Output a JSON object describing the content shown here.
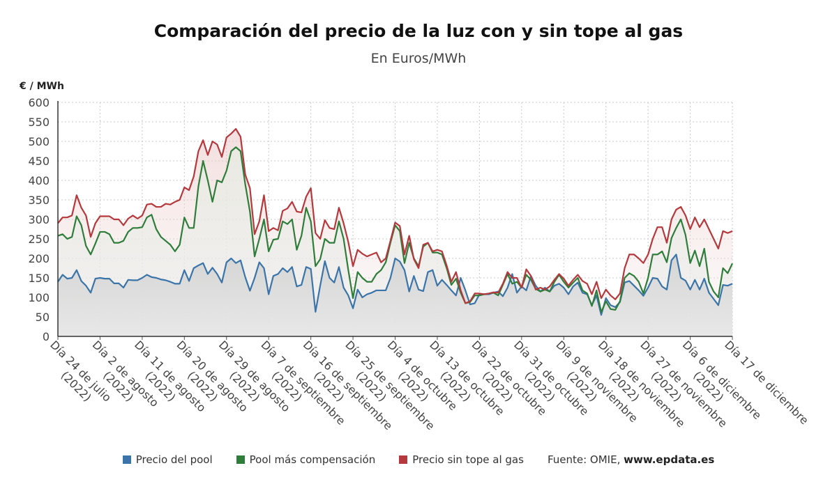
{
  "chart_data": {
    "type": "line",
    "title": "Comparación del precio de la luz con y sin tope al gas",
    "subtitle": "En Euros/MWh",
    "ylabel": "€ / MWh",
    "xlabel": "",
    "ylim": [
      0,
      600
    ],
    "yticks": [
      0,
      50,
      100,
      150,
      200,
      250,
      300,
      350,
      400,
      450,
      500,
      550,
      600
    ],
    "grid": true,
    "legend_position": "bottom",
    "x_tick_labels": [
      "Día 24 de julio (2022)",
      "Día 2 de agosto (2022)",
      "Día 11 de agosto (2022)",
      "Día 20 de agosto (2022)",
      "Día 29 de agosto (2022)",
      "Día 7 de septiembre (2022)",
      "Día 16 de septiembre (2022)",
      "Día 25 de septiembre (2022)",
      "Día 4 de octubre (2022)",
      "Día 13 de octubre (2022)",
      "Día 22 de octubre (2022)",
      "Día 31 de octubre (2022)",
      "Día 9 de noviembre (2022)",
      "Día 18 de noviembre (2022)",
      "Día 27 de noviembre (2022)",
      "Día 6 de diciembre (2022)",
      "Día 17 de diciembre"
    ],
    "x_tick_index": [
      0,
      9,
      18,
      27,
      36,
      45,
      54,
      63,
      72,
      81,
      90,
      99,
      108,
      117,
      126,
      135,
      144
    ],
    "series": [
      {
        "name": "Precio del pool",
        "color": "#3a74a8",
        "values": [
          140,
          158,
          148,
          150,
          170,
          142,
          130,
          112,
          148,
          150,
          148,
          148,
          136,
          136,
          125,
          145,
          144,
          144,
          150,
          158,
          152,
          150,
          146,
          144,
          140,
          135,
          135,
          170,
          142,
          175,
          182,
          188,
          160,
          176,
          160,
          138,
          190,
          200,
          188,
          195,
          152,
          117,
          150,
          190,
          175,
          108,
          155,
          160,
          175,
          165,
          178,
          128,
          132,
          178,
          173,
          63,
          130,
          193,
          150,
          138,
          178,
          125,
          105,
          72,
          120,
          100,
          108,
          112,
          118,
          118,
          118,
          150,
          200,
          192,
          170,
          115,
          155,
          120,
          116,
          165,
          170,
          130,
          145,
          132,
          118,
          105,
          150,
          118,
          82,
          85,
          108,
          108,
          108,
          112,
          115,
          103,
          125,
          160,
          112,
          128,
          118,
          155,
          130,
          115,
          125,
          115,
          130,
          135,
          125,
          108,
          128,
          138,
          112,
          108,
          80,
          105,
          55,
          98,
          80,
          75,
          88,
          138,
          142,
          130,
          118,
          104,
          125,
          150,
          148,
          128,
          120,
          195,
          210,
          150,
          143,
          120,
          145,
          120,
          148,
          112,
          96,
          80,
          132,
          130,
          135
        ]
      },
      {
        "name": "Pool más compensación",
        "color": "#2e7d3a",
        "values": [
          258,
          262,
          250,
          255,
          308,
          285,
          232,
          210,
          238,
          268,
          268,
          262,
          240,
          240,
          245,
          268,
          278,
          278,
          280,
          305,
          312,
          275,
          255,
          245,
          235,
          218,
          235,
          305,
          278,
          278,
          385,
          450,
          400,
          345,
          400,
          395,
          425,
          475,
          485,
          475,
          390,
          320,
          205,
          250,
          300,
          218,
          248,
          250,
          295,
          288,
          300,
          222,
          258,
          330,
          295,
          180,
          198,
          250,
          240,
          240,
          295,
          250,
          170,
          98,
          165,
          150,
          140,
          140,
          160,
          170,
          190,
          240,
          285,
          270,
          188,
          240,
          200,
          180,
          230,
          240,
          215,
          215,
          210,
          175,
          132,
          148,
          112,
          85,
          88,
          105,
          105,
          108,
          110,
          112,
          105,
          132,
          160,
          135,
          140,
          125,
          158,
          145,
          122,
          115,
          120,
          115,
          140,
          158,
          140,
          125,
          138,
          150,
          118,
          110,
          78,
          118,
          62,
          90,
          70,
          68,
          90,
          150,
          162,
          155,
          140,
          110,
          150,
          210,
          210,
          218,
          190,
          252,
          278,
          300,
          260,
          188,
          220,
          180,
          225,
          140,
          115,
          100,
          175,
          162,
          187
        ]
      },
      {
        "name": "Precio sin tope al gas",
        "color": "#b5383c",
        "values": [
          290,
          305,
          305,
          310,
          362,
          330,
          310,
          255,
          290,
          308,
          308,
          308,
          300,
          300,
          285,
          302,
          310,
          302,
          310,
          338,
          340,
          332,
          332,
          340,
          338,
          345,
          350,
          382,
          375,
          410,
          475,
          503,
          465,
          500,
          492,
          460,
          510,
          520,
          532,
          512,
          415,
          380,
          262,
          295,
          362,
          270,
          278,
          272,
          322,
          328,
          345,
          320,
          318,
          358,
          380,
          265,
          250,
          298,
          278,
          275,
          330,
          290,
          242,
          180,
          222,
          212,
          205,
          210,
          215,
          190,
          200,
          245,
          292,
          283,
          210,
          258,
          198,
          175,
          235,
          240,
          218,
          222,
          218,
          182,
          140,
          165,
          118,
          85,
          90,
          110,
          110,
          108,
          110,
          113,
          112,
          135,
          165,
          150,
          150,
          125,
          172,
          155,
          120,
          125,
          120,
          128,
          145,
          160,
          148,
          130,
          145,
          158,
          142,
          135,
          108,
          140,
          98,
          120,
          105,
          95,
          110,
          175,
          210,
          210,
          200,
          188,
          210,
          250,
          280,
          280,
          240,
          300,
          325,
          332,
          310,
          275,
          305,
          280,
          300,
          275,
          250,
          225,
          270,
          265,
          270
        ]
      }
    ],
    "source_label": "Fuente: OMIE, ",
    "source_site": "www.epdata.es"
  }
}
